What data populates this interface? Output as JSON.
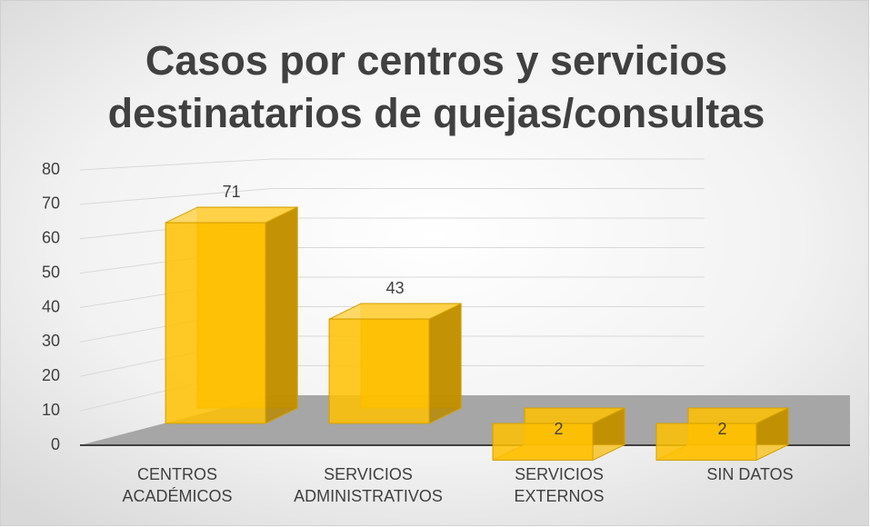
{
  "chart_data": {
    "type": "bar3d",
    "title": "Casos por centros y servicios destinatarios de quejas/consultas",
    "categories": [
      "CENTROS ACADÉMICOS",
      "SERVICIOS ADMINISTRATIVOS",
      "SERVICIOS EXTERNOS",
      "SIN DATOS"
    ],
    "values": [
      71,
      43,
      2,
      2
    ],
    "color": "#ffc000",
    "ylim": [
      0,
      80
    ],
    "yticks": [
      0,
      10,
      20,
      30,
      40,
      50,
      60,
      70,
      80
    ],
    "grid": true
  }
}
